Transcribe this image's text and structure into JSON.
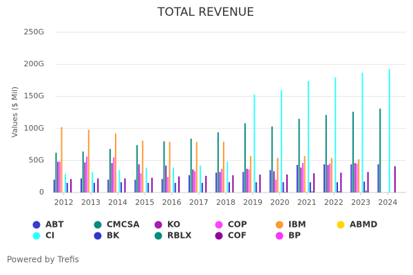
{
  "chart_data": {
    "type": "bar",
    "title": "TOTAL REVENUE",
    "y_label": "Values ($ Mil)",
    "credit": "Powered by Trefis",
    "categories": [
      "2012",
      "2013",
      "2014",
      "2015",
      "2016",
      "2017",
      "2018",
      "2019",
      "2020",
      "2021",
      "2022",
      "2023",
      "2024"
    ],
    "ylim": [
      0,
      250
    ],
    "yticks": [
      0,
      {
        "value": 50,
        "label": "50G"
      },
      {
        "value": 100,
        "label": "100G"
      },
      {
        "value": 150,
        "label": "150G"
      },
      {
        "value": 200,
        "label": "200G"
      },
      {
        "value": 250,
        "label": "250G"
      }
    ],
    "grid": true,
    "series": [
      {
        "name": "ABT",
        "color": "#3b3bcf",
        "values": [
          20,
          22,
          20,
          20,
          21,
          27,
          31,
          32,
          35,
          43,
          44,
          44,
          44
        ]
      },
      {
        "name": "CMCSA",
        "color": "#0a8a7f",
        "values": [
          62,
          64,
          68,
          74,
          80,
          84,
          94,
          108,
          103,
          115,
          121,
          126,
          131
        ]
      },
      {
        "name": "KO",
        "color": "#a020b0",
        "values": [
          48,
          47,
          46,
          44,
          42,
          36,
          32,
          37,
          33,
          39,
          43,
          46,
          null
        ]
      },
      {
        "name": "COP",
        "color": "#ff44ff",
        "values": [
          48,
          56,
          55,
          30,
          24,
          33,
          37,
          36,
          20,
          46,
          45,
          45,
          null
        ]
      },
      {
        "name": "IBM",
        "color": "#ff9933",
        "values": [
          102,
          98,
          92,
          81,
          79,
          79,
          79,
          57,
          54,
          57,
          54,
          52,
          null
        ]
      },
      {
        "name": "ABMD",
        "color": "#ffd700",
        "values": [
          0.2,
          0.2,
          0.2,
          0.2,
          0.3,
          0.4,
          0.6,
          0.8,
          0.8,
          0.9,
          1,
          null,
          null
        ]
      },
      {
        "name": "CI",
        "color": "#33ffff",
        "values": [
          29,
          32,
          35,
          38,
          39,
          42,
          48,
          153,
          160,
          174,
          180,
          187,
          193
        ]
      },
      {
        "name": "BK",
        "color": "#3333cc",
        "values": [
          15,
          15,
          16,
          15,
          15,
          15,
          16,
          16,
          16,
          16,
          16,
          17,
          null
        ]
      },
      {
        "name": "RBLX",
        "color": "#078a80",
        "values": [
          null,
          null,
          null,
          null,
          null,
          null,
          null,
          0.5,
          0.9,
          1.9,
          2.2,
          2.8,
          null
        ]
      },
      {
        "name": "COF",
        "color": "#8e00a0",
        "values": [
          21,
          22,
          22,
          23,
          25,
          26,
          27,
          28,
          28,
          30,
          31,
          32,
          41
        ]
      },
      {
        "name": "BP",
        "color": "#ff33ff",
        "values": [
          null,
          null,
          null,
          null,
          null,
          null,
          null,
          null,
          null,
          null,
          null,
          null,
          null
        ]
      }
    ]
  }
}
